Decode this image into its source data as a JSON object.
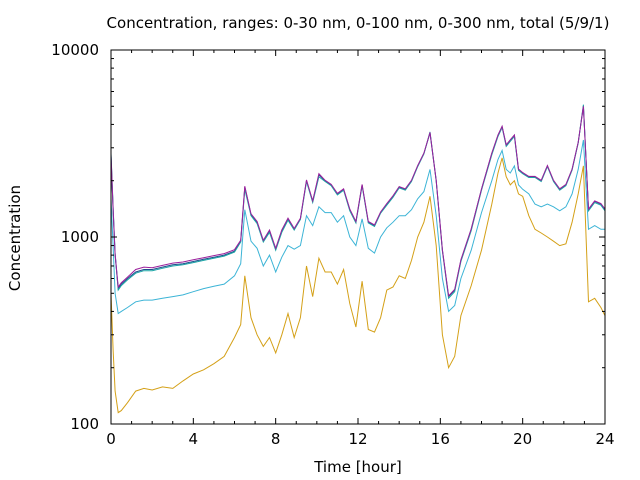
{
  "chart_data": {
    "type": "line",
    "title": "Concentration, ranges: 0-30 nm, 0-100 nm, 0-300 nm, total (5/9/1)",
    "xlabel": "Time [hour]",
    "ylabel": "Concentration",
    "xlim": [
      0,
      24
    ],
    "ylim": [
      100,
      10000
    ],
    "y_scale": "log",
    "x_ticks": [
      0,
      4,
      8,
      12,
      16,
      20,
      24
    ],
    "y_ticks": [
      100,
      1000,
      10000
    ],
    "x_tick_labels": [
      "0",
      "4",
      "8",
      "12",
      "16",
      "20",
      "24"
    ],
    "y_tick_labels": [
      "100",
      "1000",
      "10000"
    ],
    "grid": false,
    "legend": "none",
    "x": [
      0,
      0.1,
      0.2,
      0.35,
      0.5,
      0.8,
      1.2,
      1.6,
      2.0,
      2.5,
      3.0,
      3.5,
      4.0,
      4.5,
      5.0,
      5.5,
      6.0,
      6.3,
      6.5,
      6.8,
      7.1,
      7.4,
      7.7,
      8.0,
      8.3,
      8.6,
      8.9,
      9.2,
      9.5,
      9.8,
      10.1,
      10.4,
      10.7,
      11.0,
      11.3,
      11.6,
      11.9,
      12.2,
      12.5,
      12.8,
      13.1,
      13.4,
      13.7,
      14.0,
      14.3,
      14.6,
      14.9,
      15.2,
      15.5,
      15.8,
      16.1,
      16.4,
      16.7,
      17.0,
      17.5,
      18.0,
      18.5,
      18.8,
      19.0,
      19.2,
      19.4,
      19.6,
      19.8,
      20.0,
      20.3,
      20.6,
      20.9,
      21.2,
      21.5,
      21.8,
      22.1,
      22.4,
      22.7,
      22.95,
      23.2,
      23.5,
      23.8,
      24.0
    ],
    "series": [
      {
        "color": "#d4a017",
        "values": [
          500,
          250,
          150,
          115,
          118,
          130,
          150,
          155,
          152,
          158,
          155,
          170,
          185,
          195,
          210,
          230,
          290,
          340,
          620,
          370,
          300,
          260,
          290,
          240,
          300,
          390,
          290,
          370,
          700,
          480,
          770,
          650,
          650,
          560,
          670,
          440,
          330,
          580,
          320,
          310,
          370,
          520,
          540,
          620,
          600,
          750,
          1000,
          1200,
          1650,
          900,
          300,
          200,
          230,
          380,
          550,
          850,
          1500,
          2200,
          2650,
          2100,
          1900,
          2000,
          1700,
          1650,
          1300,
          1100,
          1050,
          1000,
          950,
          900,
          920,
          1200,
          1700,
          2400,
          450,
          470,
          420,
          380
        ]
      },
      {
        "color": "#3cb4d6",
        "values": [
          1600,
          900,
          500,
          390,
          400,
          420,
          450,
          460,
          460,
          470,
          480,
          490,
          510,
          530,
          545,
          560,
          620,
          720,
          1400,
          950,
          870,
          700,
          800,
          650,
          780,
          900,
          860,
          900,
          1300,
          1150,
          1450,
          1350,
          1350,
          1200,
          1300,
          1000,
          900,
          1250,
          870,
          820,
          1000,
          1120,
          1200,
          1300,
          1300,
          1400,
          1600,
          1750,
          2300,
          1300,
          600,
          400,
          430,
          600,
          850,
          1350,
          2000,
          2600,
          2900,
          2300,
          2200,
          2400,
          1900,
          1800,
          1700,
          1500,
          1450,
          1500,
          1450,
          1380,
          1450,
          1700,
          2300,
          3300,
          1100,
          1150,
          1100,
          1100
        ]
      },
      {
        "color": "#1e4d8c",
        "values": [
          2700,
          1400,
          800,
          530,
          560,
          600,
          650,
          670,
          670,
          690,
          710,
          720,
          740,
          760,
          780,
          800,
          840,
          950,
          1850,
          1320,
          1200,
          950,
          1080,
          860,
          1080,
          1250,
          1100,
          1250,
          2000,
          1550,
          2150,
          2000,
          1900,
          1700,
          1800,
          1400,
          1200,
          1900,
          1200,
          1150,
          1350,
          1500,
          1650,
          1850,
          1800,
          2000,
          2400,
          2800,
          3600,
          2000,
          850,
          480,
          520,
          750,
          1100,
          1800,
          2800,
          3500,
          3900,
          3100,
          3300,
          3500,
          2300,
          2200,
          2100,
          2100,
          2000,
          2400,
          2000,
          1800,
          1900,
          2300,
          3200,
          5000,
          1400,
          1550,
          1500,
          1400
        ]
      },
      {
        "color": "#1aa5a5",
        "values": [
          2800,
          1450,
          820,
          520,
          550,
          590,
          640,
          660,
          660,
          680,
          700,
          710,
          730,
          750,
          770,
          790,
          830,
          940,
          1800,
          1300,
          1180,
          940,
          1060,
          850,
          1060,
          1230,
          1090,
          1240,
          1980,
          1530,
          2100,
          1980,
          1880,
          1680,
          1780,
          1380,
          1190,
          1880,
          1190,
          1140,
          1340,
          1480,
          1630,
          1830,
          1780,
          1980,
          2380,
          2780,
          3650,
          2000,
          840,
          470,
          510,
          740,
          1080,
          1780,
          2750,
          3450,
          3850,
          3050,
          3250,
          3450,
          2270,
          2180,
          2080,
          2080,
          1980,
          2380,
          1980,
          1780,
          1880,
          2280,
          3180,
          5100,
          1380,
          1530,
          1480,
          1380
        ]
      },
      {
        "color": "#9c1f9c",
        "values": [
          2750,
          1420,
          810,
          540,
          570,
          610,
          670,
          690,
          685,
          705,
          725,
          735,
          755,
          775,
          795,
          815,
          855,
          960,
          1870,
          1330,
          1210,
          960,
          1090,
          870,
          1090,
          1260,
          1110,
          1260,
          2020,
          1560,
          2180,
          2010,
          1910,
          1710,
          1810,
          1410,
          1210,
          1910,
          1210,
          1160,
          1360,
          1510,
          1660,
          1860,
          1810,
          2010,
          2410,
          2810,
          3620,
          2010,
          855,
          485,
          525,
          755,
          1105,
          1805,
          2810,
          3510,
          3910,
          3110,
          3310,
          3510,
          2310,
          2210,
          2110,
          2110,
          2010,
          2410,
          2010,
          1810,
          1910,
          2310,
          3210,
          5000,
          1410,
          1560,
          1510,
          1410
        ]
      }
    ]
  }
}
